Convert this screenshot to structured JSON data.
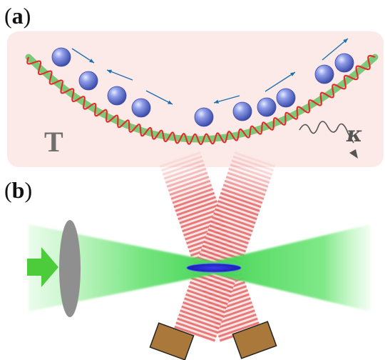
{
  "panel_a": {
    "label": "a",
    "temperature_symbol": "T",
    "decay_symbol": "κ"
  },
  "panel_b": {
    "label": "b"
  },
  "colors": {
    "panel_background": "#fbeae8",
    "trap_curve": "#7dc97a",
    "optical_lattice": "#e0302a",
    "atom": "#6f7fd8",
    "arrow": "#1f6fb0",
    "green_beam": "#5fe06a",
    "lens": "#8f8f8f",
    "red_beam": "#e55a5a",
    "atom_cloud": "#2a2fd8",
    "mirror": "#a9783a"
  },
  "icons": [
    "atom-icon",
    "motion-arrow-icon",
    "wavy-arrow-icon",
    "input-arrow-icon",
    "lens-icon",
    "mirror-icon"
  ]
}
